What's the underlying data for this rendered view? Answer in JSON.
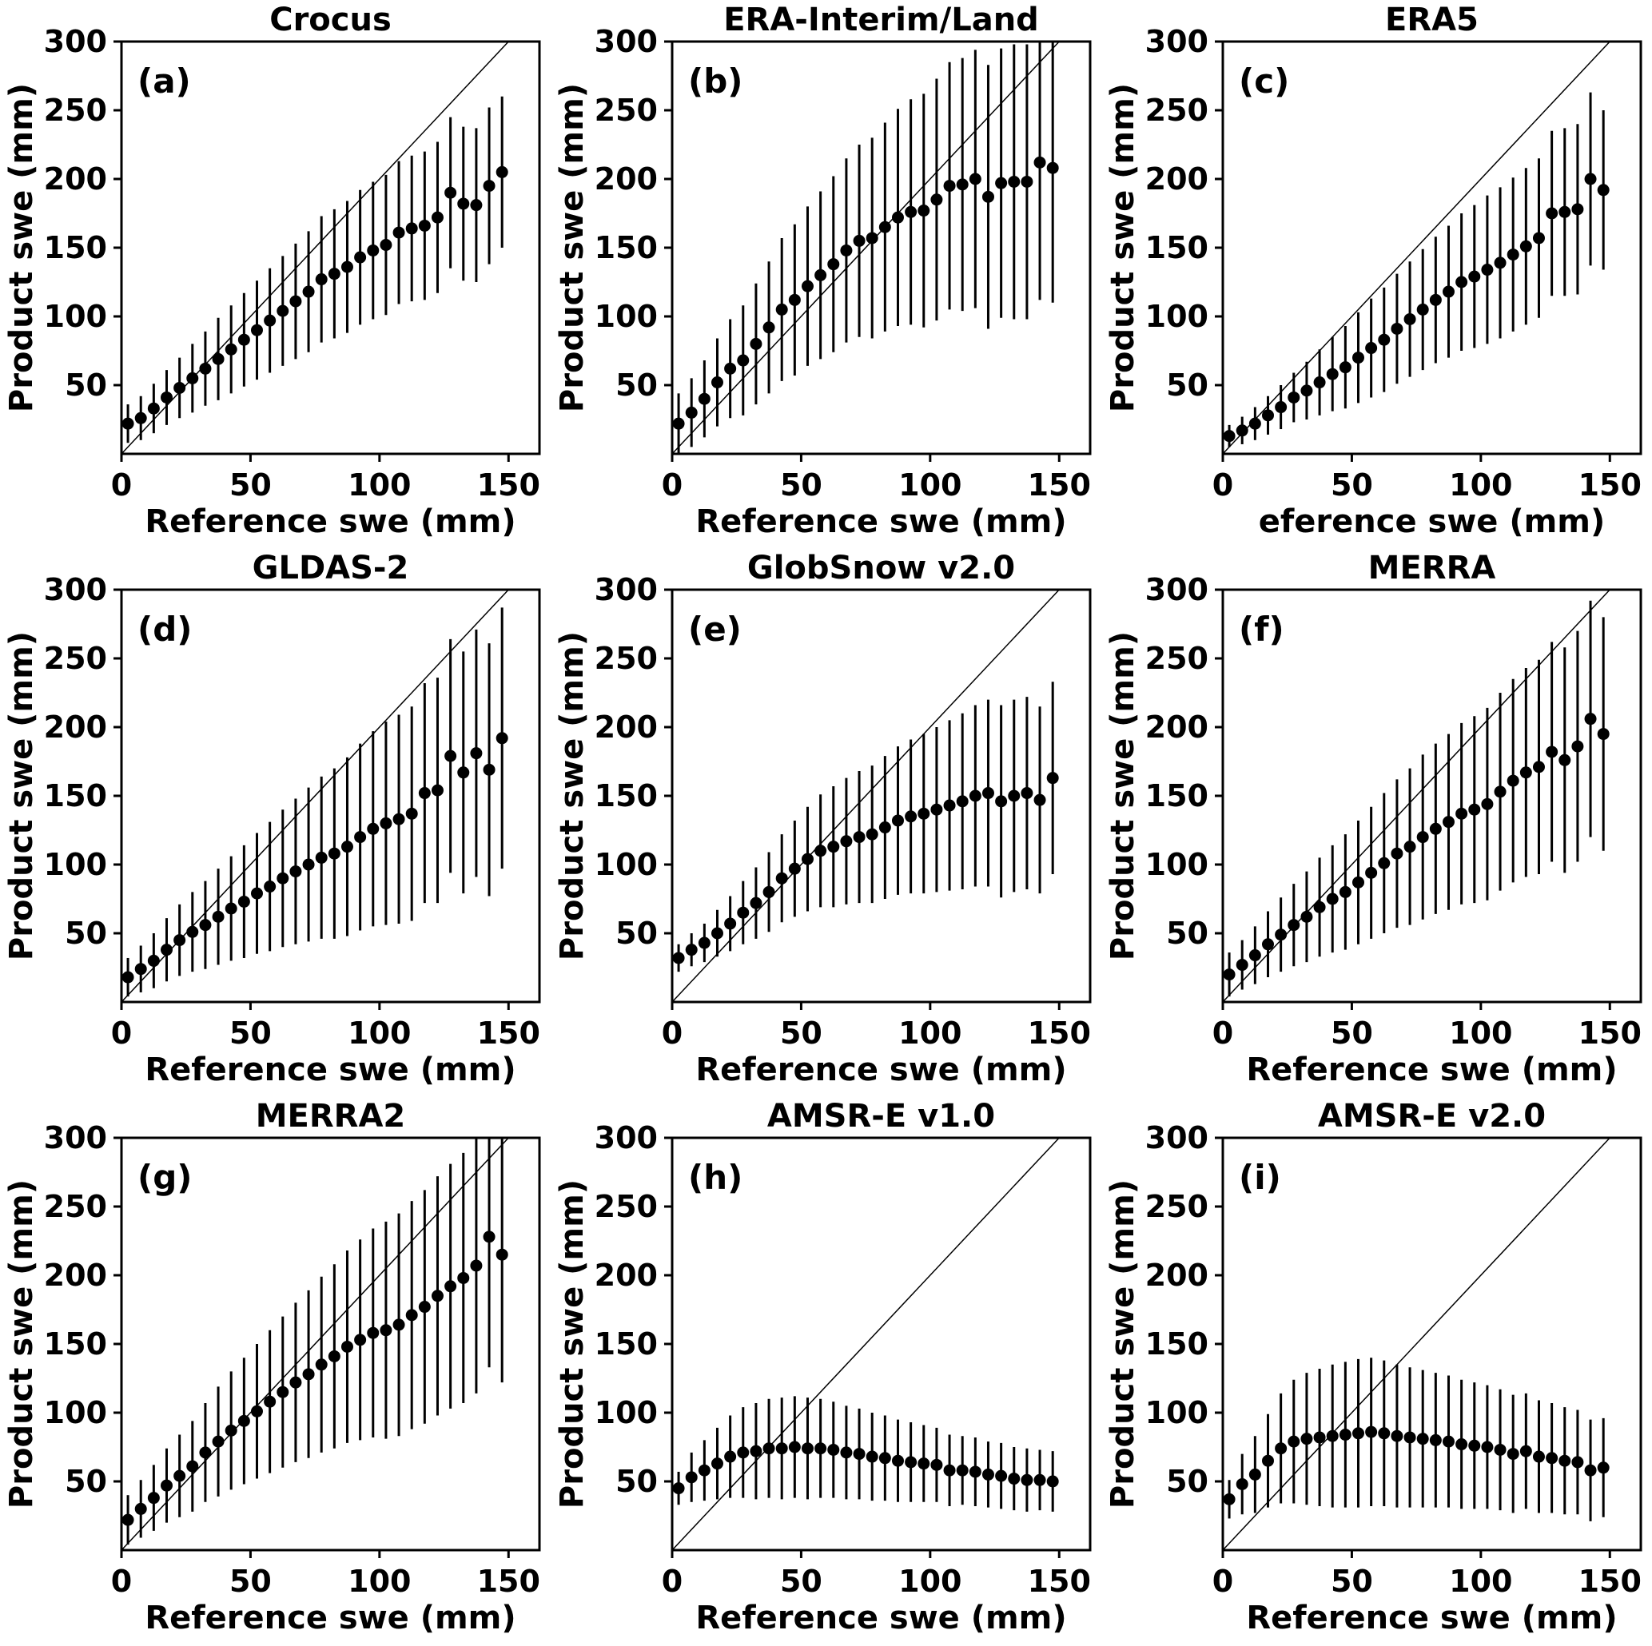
{
  "figure": {
    "background": "#ffffff",
    "marker_color": "#000000",
    "xlim": [
      0,
      162
    ],
    "ylim": [
      0,
      300
    ],
    "x_tick_values": [
      0,
      50,
      100,
      150
    ],
    "x_tick_labels": [
      "0",
      "50",
      "100",
      "150"
    ],
    "y_tick_values": [
      50,
      100,
      150,
      200,
      250,
      300
    ],
    "y_tick_labels": [
      "50",
      "100",
      "150",
      "200",
      "250",
      "300"
    ],
    "diagonal_line": {
      "from_xy": [
        0,
        0
      ],
      "to_xy": [
        150,
        300
      ]
    },
    "bin_centers": [
      2.5,
      7.5,
      12.5,
      17.5,
      22.5,
      27.5,
      32.5,
      37.5,
      42.5,
      47.5,
      52.5,
      57.5,
      62.5,
      67.5,
      72.5,
      77.5,
      82.5,
      87.5,
      92.5,
      97.5,
      102.5,
      107.5,
      112.5,
      117.5,
      122.5,
      127.5,
      132.5,
      137.5,
      142.5,
      147.5
    ]
  },
  "chart_data": [
    {
      "type": "scatter",
      "label": "(a)",
      "title": "Crocus",
      "xlabel": "Reference swe (mm)",
      "ylabel": "Product swe (mm)",
      "y": [
        22,
        26,
        33,
        41,
        48,
        55,
        62,
        69,
        76,
        83,
        90,
        97,
        104,
        111,
        118,
        127,
        131,
        136,
        143,
        148,
        152,
        161,
        164,
        166,
        172,
        190,
        182,
        181,
        195,
        205
      ],
      "yerr": [
        14,
        16,
        18,
        20,
        22,
        25,
        27,
        30,
        32,
        34,
        36,
        38,
        40,
        42,
        44,
        46,
        47,
        48,
        49,
        50,
        51,
        52,
        53,
        54,
        55,
        55,
        56,
        56,
        57,
        55
      ]
    },
    {
      "type": "scatter",
      "label": "(b)",
      "title": "ERA-Interim/Land",
      "xlabel": "Reference swe (mm)",
      "ylabel": "Product swe (mm)",
      "y": [
        22,
        30,
        40,
        52,
        62,
        68,
        80,
        92,
        105,
        112,
        122,
        130,
        138,
        148,
        155,
        157,
        165,
        172,
        176,
        177,
        185,
        195,
        196,
        200,
        187,
        197,
        198,
        198,
        212,
        208
      ],
      "yerr": [
        22,
        25,
        28,
        32,
        36,
        40,
        44,
        48,
        52,
        55,
        58,
        61,
        64,
        67,
        70,
        73,
        76,
        79,
        82,
        85,
        88,
        90,
        92,
        94,
        96,
        98,
        100,
        100,
        100,
        98
      ]
    },
    {
      "type": "scatter",
      "label": "(c)",
      "title": "ERA5",
      "xlabel": "eference swe (mm)",
      "ylabel": "Product swe (mm)",
      "y": [
        13,
        17,
        22,
        28,
        34,
        41,
        46,
        52,
        58,
        63,
        70,
        77,
        83,
        91,
        98,
        105,
        112,
        118,
        125,
        129,
        134,
        139,
        145,
        151,
        157,
        175,
        176,
        178,
        200,
        192
      ],
      "yerr": [
        8,
        10,
        12,
        14,
        16,
        18,
        21,
        24,
        27,
        30,
        33,
        36,
        38,
        40,
        42,
        44,
        46,
        48,
        50,
        52,
        54,
        55,
        56,
        57,
        58,
        60,
        61,
        62,
        63,
        58
      ]
    },
    {
      "type": "scatter",
      "label": "(d)",
      "title": "GLDAS-2",
      "xlabel": "Reference swe (mm)",
      "ylabel": "Product swe (mm)",
      "y": [
        18,
        24,
        30,
        38,
        45,
        51,
        56,
        62,
        68,
        73,
        79,
        84,
        90,
        95,
        100,
        105,
        108,
        113,
        120,
        126,
        130,
        133,
        137,
        152,
        154,
        179,
        167,
        181,
        169,
        192
      ],
      "yerr": [
        14,
        17,
        20,
        23,
        26,
        29,
        32,
        35,
        38,
        41,
        44,
        47,
        50,
        53,
        56,
        59,
        62,
        65,
        68,
        71,
        74,
        76,
        78,
        80,
        82,
        85,
        88,
        90,
        92,
        95
      ]
    },
    {
      "type": "scatter",
      "label": "(e)",
      "title": "GlobSnow v2.0",
      "xlabel": "Reference swe (mm)",
      "ylabel": "Product swe (mm)",
      "y": [
        32,
        38,
        43,
        50,
        57,
        65,
        72,
        80,
        90,
        97,
        104,
        110,
        113,
        117,
        120,
        122,
        127,
        132,
        135,
        137,
        140,
        143,
        146,
        150,
        152,
        146,
        150,
        152,
        147,
        163
      ],
      "yerr": [
        10,
        12,
        14,
        17,
        20,
        23,
        26,
        29,
        32,
        35,
        38,
        41,
        44,
        46,
        48,
        50,
        52,
        54,
        56,
        58,
        60,
        62,
        64,
        66,
        68,
        70,
        70,
        70,
        68,
        70
      ]
    },
    {
      "type": "scatter",
      "label": "(f)",
      "title": "MERRA",
      "xlabel": "Reference swe (mm)",
      "ylabel": "Product swe (mm)",
      "y": [
        20,
        27,
        34,
        42,
        49,
        56,
        62,
        69,
        75,
        80,
        87,
        94,
        101,
        108,
        113,
        120,
        126,
        131,
        137,
        140,
        144,
        153,
        161,
        167,
        171,
        182,
        176,
        186,
        206,
        195
      ],
      "yerr": [
        16,
        18,
        21,
        24,
        27,
        30,
        33,
        36,
        39,
        42,
        45,
        48,
        51,
        54,
        57,
        60,
        62,
        64,
        66,
        68,
        70,
        72,
        74,
        76,
        78,
        80,
        82,
        84,
        86,
        85
      ]
    },
    {
      "type": "scatter",
      "label": "(g)",
      "title": "MERRA2",
      "xlabel": "Reference swe (mm)",
      "ylabel": "Product swe (mm)",
      "y": [
        22,
        30,
        38,
        47,
        54,
        61,
        71,
        79,
        87,
        94,
        101,
        108,
        115,
        122,
        128,
        135,
        141,
        148,
        153,
        158,
        160,
        164,
        171,
        177,
        185,
        192,
        198,
        207,
        228,
        215
      ],
      "yerr": [
        18,
        21,
        24,
        27,
        30,
        33,
        36,
        40,
        43,
        46,
        49,
        52,
        55,
        58,
        61,
        64,
        67,
        70,
        73,
        76,
        79,
        81,
        83,
        85,
        87,
        89,
        91,
        93,
        95,
        93
      ]
    },
    {
      "type": "scatter",
      "label": "(h)",
      "title": "AMSR-E v1.0",
      "xlabel": "Reference swe (mm)",
      "ylabel": "Product swe (mm)",
      "y": [
        45,
        53,
        58,
        63,
        68,
        71,
        72,
        74,
        74,
        75,
        74,
        74,
        73,
        71,
        70,
        68,
        67,
        65,
        64,
        63,
        62,
        58,
        58,
        57,
        55,
        54,
        52,
        51,
        51,
        50
      ],
      "yerr": [
        12,
        18,
        22,
        26,
        30,
        33,
        35,
        36,
        37,
        37,
        37,
        36,
        35,
        34,
        33,
        32,
        31,
        30,
        29,
        28,
        27,
        26,
        25,
        25,
        24,
        24,
        23,
        23,
        22,
        22
      ]
    },
    {
      "type": "scatter",
      "label": "(i)",
      "title": "AMSR-E v2.0",
      "xlabel": "Reference swe (mm)",
      "ylabel": "Product swe (mm)",
      "y": [
        37,
        48,
        55,
        65,
        74,
        79,
        81,
        82,
        83,
        84,
        85,
        86,
        85,
        83,
        82,
        81,
        80,
        79,
        77,
        76,
        75,
        73,
        70,
        72,
        68,
        67,
        65,
        64,
        58,
        60
      ],
      "yerr": [
        14,
        22,
        28,
        34,
        40,
        45,
        48,
        50,
        52,
        53,
        54,
        54,
        53,
        52,
        51,
        50,
        49,
        48,
        47,
        46,
        45,
        44,
        43,
        42,
        41,
        40,
        39,
        38,
        37,
        36
      ]
    }
  ]
}
